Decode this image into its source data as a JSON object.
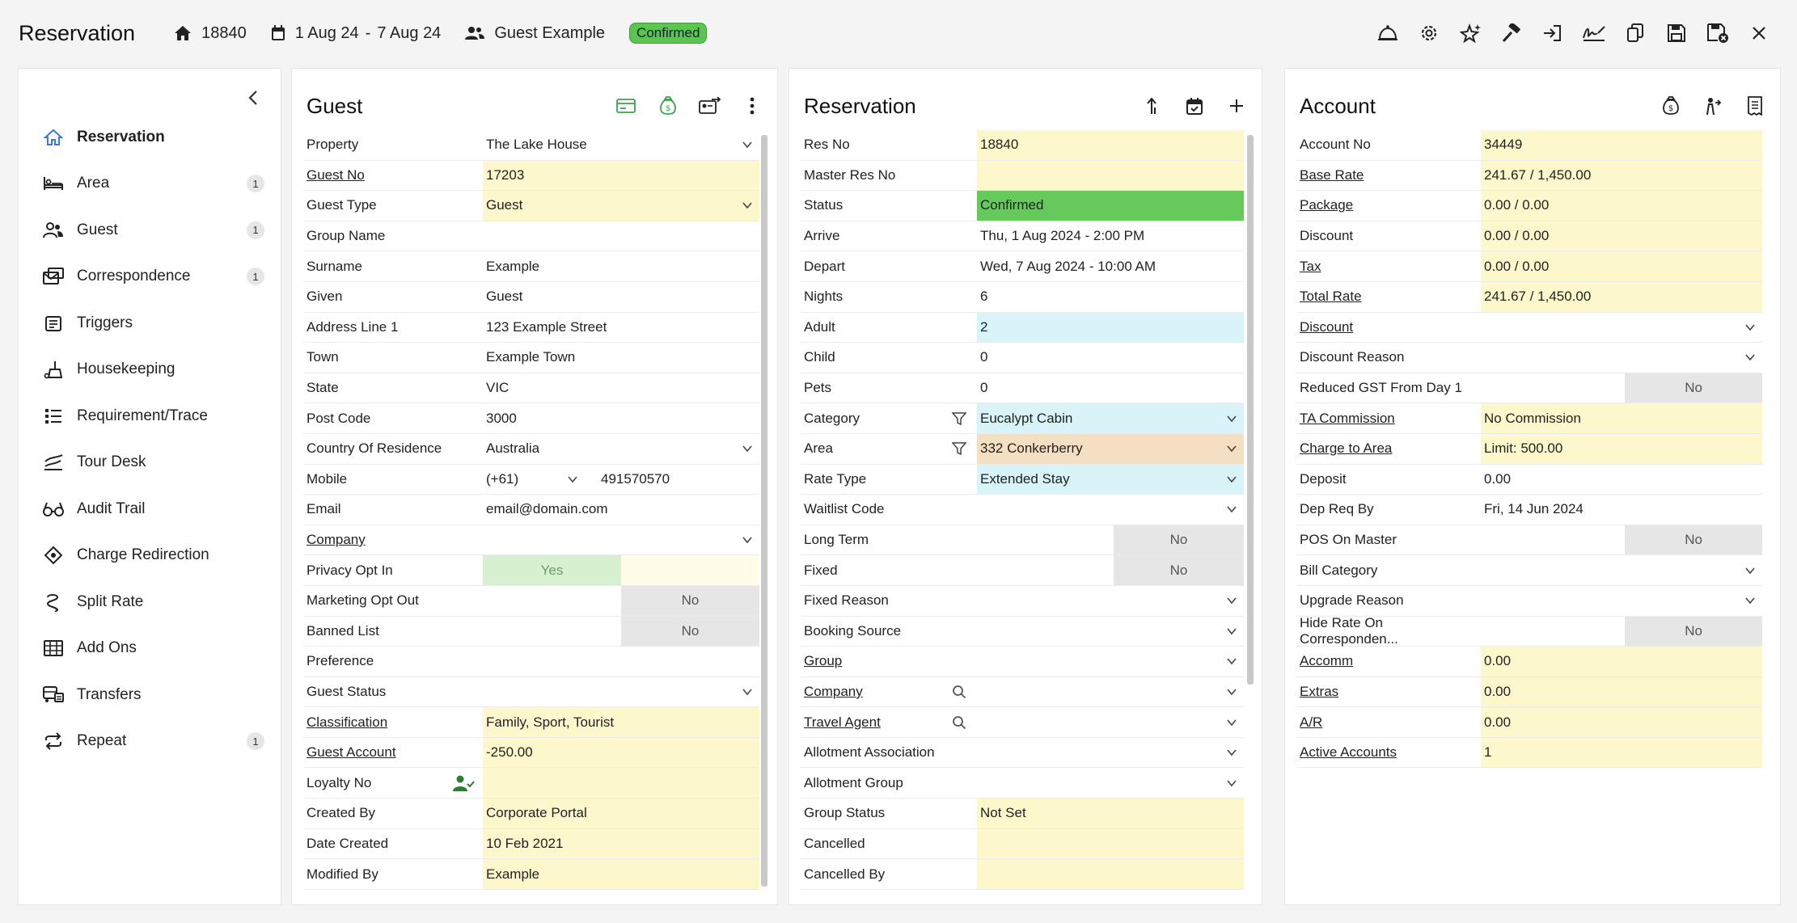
{
  "header": {
    "title": "Reservation",
    "res_no": "18840",
    "date_start": "1 Aug 24",
    "date_sep": "-",
    "date_end": "7 Aug 24",
    "guest": "Guest Example",
    "status": "Confirmed"
  },
  "toolbar_icons": [
    "bell-icon",
    "gear-icon",
    "sparkle-icon",
    "hammer-icon",
    "checkin-icon",
    "signature-icon",
    "copy-icon",
    "save-icon",
    "save-close-icon",
    "close-icon"
  ],
  "nav": {
    "items": [
      {
        "label": "Reservation",
        "icon": "home-icon",
        "count": ""
      },
      {
        "label": "Area",
        "icon": "bed-icon",
        "count": "1"
      },
      {
        "label": "Guest",
        "icon": "users-icon",
        "count": "1"
      },
      {
        "label": "Correspondence",
        "icon": "envelope-icon",
        "count": "1"
      },
      {
        "label": "Triggers",
        "icon": "calendar-icon",
        "count": ""
      },
      {
        "label": "Housekeeping",
        "icon": "broom-icon",
        "count": ""
      },
      {
        "label": "Requirement/Trace",
        "icon": "list-icon",
        "count": ""
      },
      {
        "label": "Tour Desk",
        "icon": "tour-icon",
        "count": ""
      },
      {
        "label": "Audit Trail",
        "icon": "glasses-icon",
        "count": ""
      },
      {
        "label": "Charge Redirection",
        "icon": "diamond-icon",
        "count": ""
      },
      {
        "label": "Split Rate",
        "icon": "split-icon",
        "count": ""
      },
      {
        "label": "Add Ons",
        "icon": "grid-icon",
        "count": ""
      },
      {
        "label": "Transfers",
        "icon": "bus-icon",
        "count": ""
      },
      {
        "label": "Repeat",
        "icon": "repeat-icon",
        "count": "1"
      }
    ]
  },
  "guest": {
    "title": "Guest",
    "rows": [
      {
        "label": "Property",
        "value": "The Lake House",
        "chevron": true
      },
      {
        "label": "Guest No",
        "value": "17203",
        "link": true,
        "bg": "yellow"
      },
      {
        "label": "Guest Type",
        "value": "Guest",
        "chevron": true,
        "bg": "yellow"
      },
      {
        "label": "Group Name",
        "value": ""
      },
      {
        "label": "Surname",
        "value": "Example"
      },
      {
        "label": "Given",
        "value": "Guest"
      },
      {
        "label": "Address Line 1",
        "value": "123 Example Street"
      },
      {
        "label": "Town",
        "value": "Example Town"
      },
      {
        "label": "State",
        "value": "VIC"
      },
      {
        "label": "Post Code",
        "value": "3000"
      },
      {
        "label": "Country Of Residence",
        "value": "Australia",
        "chevron": true
      },
      {
        "label": "Mobile",
        "prefix": "(+61)",
        "value": "491570570"
      },
      {
        "label": "Email",
        "value": "email@domain.com"
      },
      {
        "label": "Company",
        "value": "",
        "link": true,
        "chevron": true
      },
      {
        "label": "Privacy Opt In",
        "toggle": "yes",
        "value": "Yes"
      },
      {
        "label": "Marketing Opt Out",
        "toggle": "no",
        "value": "No"
      },
      {
        "label": "Banned List",
        "toggle": "no",
        "value": "No"
      },
      {
        "label": "Preference",
        "value": ""
      },
      {
        "label": "Guest Status",
        "value": "",
        "chevron": true
      },
      {
        "label": "Classification",
        "value": "Family, Sport, Tourist",
        "link": true,
        "bg": "yellow"
      },
      {
        "label": "Guest Account",
        "value": "-250.00",
        "link": true,
        "bg": "yellow"
      },
      {
        "label": "Loyalty No",
        "value": "",
        "bg": "yellow",
        "usericon": true
      },
      {
        "label": "Created By",
        "value": "Corporate Portal",
        "bg": "yellow"
      },
      {
        "label": "Date Created",
        "value": "10 Feb 2021",
        "bg": "yellow"
      },
      {
        "label": "Modified By",
        "value": "Example",
        "bg": "yellow"
      }
    ]
  },
  "reservation": {
    "title": "Reservation",
    "rows": [
      {
        "label": "Res No",
        "value": "18840",
        "bg": "yellow"
      },
      {
        "label": "Master Res No",
        "value": "",
        "bg": "yellow"
      },
      {
        "label": "Status",
        "value": "Confirmed",
        "bg": "green"
      },
      {
        "label": "Arrive",
        "value": "Thu, 1 Aug 2024 - 2:00 PM"
      },
      {
        "label": "Depart",
        "value": "Wed, 7 Aug 2024 - 10:00 AM"
      },
      {
        "label": "Nights",
        "value": "6"
      },
      {
        "label": "Adult",
        "value": "2",
        "bg": "cyan"
      },
      {
        "label": "Child",
        "value": "0"
      },
      {
        "label": "Pets",
        "value": "0"
      },
      {
        "label": "Category",
        "value": "Eucalypt Cabin",
        "bg": "cyan",
        "chevron": true,
        "filter": true
      },
      {
        "label": "Area",
        "value": "332 Conkerberry",
        "bg": "peach",
        "chevron": true,
        "filter": true
      },
      {
        "label": "Rate Type",
        "value": "Extended Stay",
        "bg": "cyan",
        "chevron": true
      },
      {
        "label": "Waitlist Code",
        "value": "",
        "chevron": true
      },
      {
        "label": "Long Term",
        "toggle": "right",
        "value": "No"
      },
      {
        "label": "Fixed",
        "toggle": "right",
        "value": "No"
      },
      {
        "label": "Fixed Reason",
        "value": "",
        "chevron": true
      },
      {
        "label": "Booking Source",
        "value": "",
        "chevron": true
      },
      {
        "label": "Group",
        "value": "",
        "link": true,
        "chevron": true
      },
      {
        "label": "Company",
        "value": "",
        "link": true,
        "chevron": true,
        "search": true
      },
      {
        "label": "Travel Agent",
        "value": "",
        "link": true,
        "chevron": true,
        "search": true
      },
      {
        "label": "Allotment Association",
        "value": "",
        "chevron": true
      },
      {
        "label": "Allotment Group",
        "value": "",
        "chevron": true
      },
      {
        "label": "Group Status",
        "value": "Not Set",
        "bg": "yellow"
      },
      {
        "label": "Cancelled",
        "value": "",
        "bg": "yellow"
      },
      {
        "label": "Cancelled By",
        "value": "",
        "bg": "yellow"
      }
    ]
  },
  "account": {
    "title": "Account",
    "rows": [
      {
        "label": "Account No",
        "value": "34449",
        "bg": "yellow"
      },
      {
        "label": "Base Rate",
        "value": "241.67 / 1,450.00",
        "link": true,
        "bg": "yellow"
      },
      {
        "label": "Package",
        "value": "0.00 / 0.00",
        "link": true,
        "bg": "yellow"
      },
      {
        "label": "Discount",
        "value": "0.00 / 0.00",
        "bg": "yellow"
      },
      {
        "label": "Tax",
        "value": "0.00 / 0.00",
        "link": true,
        "bg": "yellow"
      },
      {
        "label": "Total Rate",
        "value": "241.67 / 1,450.00",
        "link": true,
        "bg": "yellow"
      },
      {
        "label": "Discount",
        "value": "",
        "link": true,
        "chevron": true
      },
      {
        "label": "Discount Reason",
        "value": "",
        "chevron": true
      },
      {
        "label": "Reduced GST From Day 1",
        "toggle": "right",
        "value": "No"
      },
      {
        "label": "TA Commission",
        "value": "No Commission",
        "link": true,
        "bg": "yellow"
      },
      {
        "label": "Charge to Area",
        "value": "Limit: 500.00",
        "link": true,
        "bg": "yellow"
      },
      {
        "label": "Deposit",
        "value": "0.00"
      },
      {
        "label": "Dep Req By",
        "value": "Fri, 14 Jun 2024"
      },
      {
        "label": "POS On Master",
        "toggle": "right",
        "value": "No"
      },
      {
        "label": "Bill Category",
        "value": "",
        "chevron": true
      },
      {
        "label": "Upgrade Reason",
        "value": "",
        "chevron": true
      },
      {
        "label": "Hide Rate On Corresponden...",
        "toggle": "right",
        "value": "No"
      },
      {
        "label": "Accomm",
        "value": "0.00",
        "link": true,
        "bg": "yellow"
      },
      {
        "label": "Extras",
        "value": "0.00",
        "link": true,
        "bg": "yellow"
      },
      {
        "label": "A/R",
        "value": "0.00",
        "link": true,
        "bg": "yellow"
      },
      {
        "label": "Active Accounts",
        "value": "1",
        "link": true,
        "bg": "yellow"
      }
    ]
  }
}
